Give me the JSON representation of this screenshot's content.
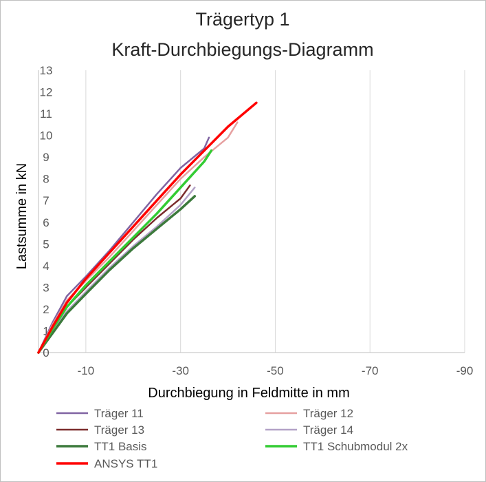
{
  "chart_data": {
    "type": "line",
    "title_lines": [
      "Trägertyp 1",
      "Kraft-Durchbiegungs-Diagramm"
    ],
    "xlabel": "Durchbiegung  in Feldmitte in mm",
    "ylabel": "Lastsumme in kN",
    "xlim": [
      0,
      -90
    ],
    "ylim": [
      0,
      13
    ],
    "x_ticks": [
      -10,
      -30,
      -50,
      -70,
      -90
    ],
    "x_tick_labels": [
      "-10",
      "-30",
      "-50",
      "-70",
      "-90"
    ],
    "y_ticks": [
      0,
      1,
      2,
      3,
      4,
      5,
      6,
      7,
      8,
      9,
      10,
      11,
      12,
      13
    ],
    "y_tick_labels": [
      "0",
      "1",
      "2",
      "3",
      "4",
      "5",
      "6",
      "7",
      "8",
      "9",
      "10",
      "11",
      "12",
      "13"
    ],
    "grid": "vertical",
    "legend_position": "bottom",
    "series": [
      {
        "name": "Träger 11",
        "color": "#8064a2",
        "width": 2.5,
        "points": [
          [
            0,
            0
          ],
          [
            -3,
            1.4
          ],
          [
            -6,
            2.6
          ],
          [
            -10,
            3.5
          ],
          [
            -15,
            4.7
          ],
          [
            -20,
            6.0
          ],
          [
            -25,
            7.3
          ],
          [
            -30,
            8.5
          ],
          [
            -35,
            9.4
          ],
          [
            -36,
            9.9
          ]
        ]
      },
      {
        "name": "Träger 12",
        "color": "#e6a0a0",
        "width": 2.5,
        "points": [
          [
            0,
            0
          ],
          [
            -3,
            1.3
          ],
          [
            -6,
            2.4
          ],
          [
            -10,
            3.3
          ],
          [
            -15,
            4.4
          ],
          [
            -20,
            5.6
          ],
          [
            -25,
            6.8
          ],
          [
            -30,
            8.0
          ],
          [
            -35,
            9.0
          ],
          [
            -40,
            9.9
          ],
          [
            -42,
            10.6
          ]
        ]
      },
      {
        "name": "Träger 13",
        "color": "#7b2c2c",
        "width": 2.5,
        "points": [
          [
            0,
            0
          ],
          [
            -3,
            1.1
          ],
          [
            -6,
            2.1
          ],
          [
            -10,
            3.0
          ],
          [
            -15,
            4.1
          ],
          [
            -20,
            5.2
          ],
          [
            -25,
            6.2
          ],
          [
            -30,
            7.1
          ],
          [
            -32,
            7.7
          ]
        ]
      },
      {
        "name": "Träger 14",
        "color": "#b3a2c7",
        "width": 2.5,
        "points": [
          [
            0,
            0
          ],
          [
            -3,
            1.0
          ],
          [
            -6,
            1.9
          ],
          [
            -10,
            2.8
          ],
          [
            -15,
            3.9
          ],
          [
            -20,
            4.9
          ],
          [
            -25,
            5.8
          ],
          [
            -30,
            6.8
          ],
          [
            -33,
            7.6
          ]
        ]
      },
      {
        "name": "TT1 Basis",
        "color": "#3c7a3c",
        "width": 3.5,
        "points": [
          [
            0,
            0
          ],
          [
            -3,
            0.9
          ],
          [
            -6,
            1.8
          ],
          [
            -10,
            2.7
          ],
          [
            -15,
            3.8
          ],
          [
            -20,
            4.8
          ],
          [
            -25,
            5.7
          ],
          [
            -30,
            6.6
          ],
          [
            -33,
            7.2
          ]
        ]
      },
      {
        "name": "TT1 Schubmodul 2x",
        "color": "#33cc33",
        "width": 3.5,
        "points": [
          [
            0,
            0
          ],
          [
            -3,
            1.1
          ],
          [
            -6,
            2.1
          ],
          [
            -10,
            3.1
          ],
          [
            -15,
            4.2
          ],
          [
            -20,
            5.3
          ],
          [
            -25,
            6.4
          ],
          [
            -30,
            7.6
          ],
          [
            -35,
            8.8
          ],
          [
            -36.5,
            9.3
          ]
        ]
      },
      {
        "name": "ANSYS TT1",
        "color": "#ff0000",
        "width": 3.5,
        "points": [
          [
            0,
            0
          ],
          [
            -3,
            1.2
          ],
          [
            -6,
            2.3
          ],
          [
            -10,
            3.4
          ],
          [
            -15,
            4.6
          ],
          [
            -20,
            5.8
          ],
          [
            -25,
            7.0
          ],
          [
            -30,
            8.2
          ],
          [
            -35,
            9.3
          ],
          [
            -40,
            10.4
          ],
          [
            -46,
            11.5
          ]
        ]
      }
    ]
  }
}
